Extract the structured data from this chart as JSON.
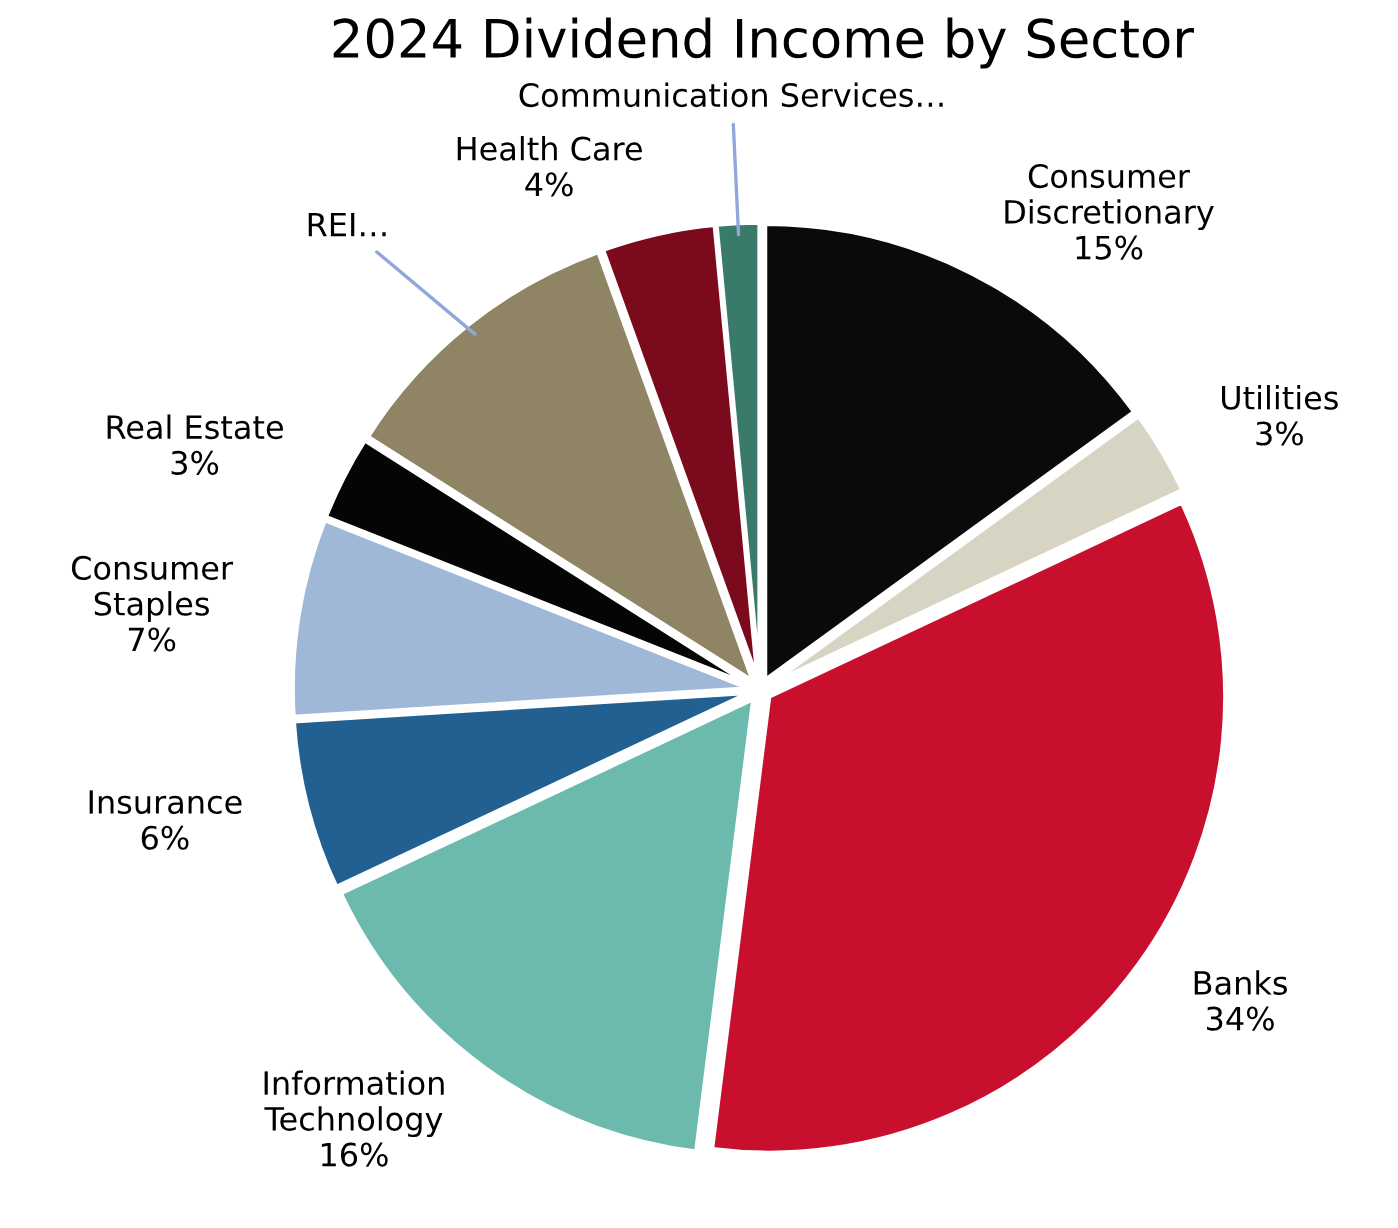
{
  "chart_data": {
    "type": "pie",
    "title": "2024 Dividend Income by Sector",
    "categories": [
      "Consumer Discretionary",
      "Utilities",
      "Banks",
      "Information Technology",
      "Insurance",
      "Consumer Staples",
      "Real Estate",
      "REI…",
      "Health Care",
      "Communication Services…"
    ],
    "values": [
      15,
      3,
      34,
      16,
      6,
      7,
      3,
      10.5,
      4,
      1.5
    ],
    "value_labels": [
      "15%",
      "3%",
      "34%",
      "16%",
      "6%",
      "7%",
      "3%",
      null,
      "4%",
      null
    ],
    "colors": [
      "#0a0a0a",
      "#d8d4c4",
      "#c8102e",
      "#6cbaae",
      "#236092",
      "#a0b8d8",
      "#050505",
      "#8f8463",
      "#7a0a1c",
      "#3a7a6a"
    ],
    "legend": false
  }
}
